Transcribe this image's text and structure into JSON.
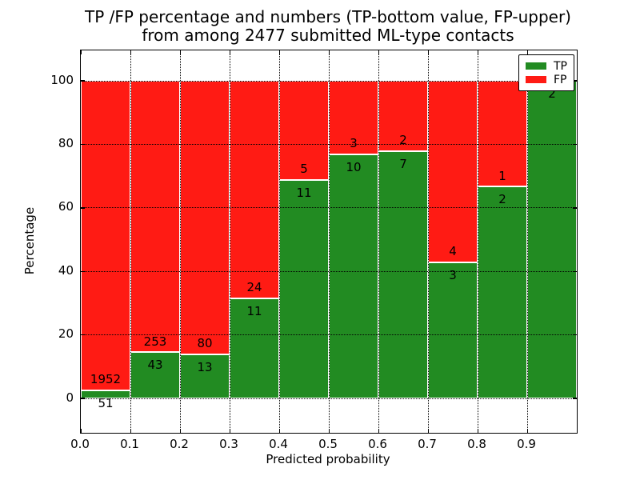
{
  "header": {
    "title_line1": "TP /FP percentage and numbers (TP-bottom value, FP-upper)",
    "title_line2": "from among 2477 submitted ML-type contacts"
  },
  "axes": {
    "xlabel": "Predicted probability",
    "ylabel": "Percentage",
    "x_tick_labels": [
      "0.0",
      "0.1",
      "0.2",
      "0.3",
      "0.4",
      "0.5",
      "0.6",
      "0.7",
      "0.8",
      "0.9"
    ],
    "y_tick_labels": [
      "0",
      "20",
      "40",
      "60",
      "80",
      "100"
    ]
  },
  "legend": {
    "entries": [
      {
        "label": "TP",
        "color": "#228b22"
      },
      {
        "label": "FP",
        "color": "#ff1b14"
      }
    ]
  },
  "colors": {
    "tp": "#228b22",
    "fp": "#ff1b14",
    "grid": "#000000",
    "frame": "#000000",
    "background": "#ffffff",
    "bar_edge": "#ffffff"
  },
  "chart_data": {
    "type": "bar",
    "mode": "stacked-percentage",
    "title": "TP /FP percentage and numbers (TP-bottom value, FP-upper) from among 2477 submitted ML-type contacts",
    "xlabel": "Predicted probability",
    "ylabel": "Percentage",
    "total_contacts": 2477,
    "bins": [
      0.0,
      0.1,
      0.2,
      0.3,
      0.4,
      0.5,
      0.6,
      0.7,
      0.8,
      0.9
    ],
    "bin_width": 0.1,
    "series": [
      {
        "name": "TP",
        "color": "#228b22",
        "counts": [
          51,
          43,
          13,
          11,
          11,
          10,
          7,
          3,
          2,
          2
        ]
      },
      {
        "name": "FP",
        "color": "#ff1b14",
        "counts": [
          1952,
          253,
          80,
          24,
          5,
          3,
          2,
          4,
          1,
          0
        ]
      }
    ],
    "tp_percent": [
      2.55,
      14.53,
      13.98,
      31.43,
      68.75,
      76.92,
      77.78,
      42.86,
      66.67,
      100.0
    ],
    "bar_count_labels": {
      "tp": [
        "51",
        "43",
        "13",
        "11",
        "11",
        "10",
        "7",
        "3",
        "2",
        "2"
      ],
      "fp": [
        "1952",
        "253",
        "80",
        "24",
        "5",
        "3",
        "2",
        "4",
        "1",
        ""
      ]
    },
    "xlim": [
      0.0,
      1.0
    ],
    "ylim": [
      -10.8,
      109.6
    ],
    "x_ticks": [
      0.0,
      0.1,
      0.2,
      0.3,
      0.4,
      0.5,
      0.6,
      0.7,
      0.8,
      0.9
    ],
    "y_ticks": [
      0,
      20,
      40,
      60,
      80,
      100
    ],
    "grid": "dotted",
    "legend_position": "upper-right",
    "tp_label_offset_pct": -4.0,
    "fp_label_offset_pct": 3.5
  }
}
